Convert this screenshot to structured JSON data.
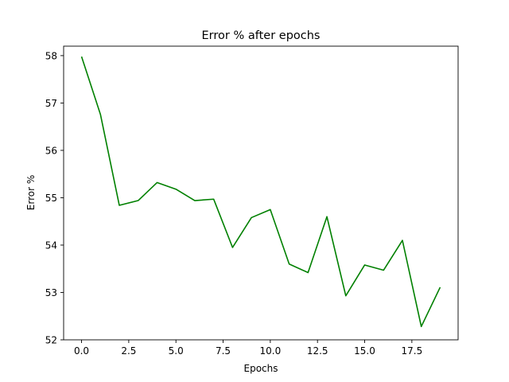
{
  "chart_data": {
    "type": "line",
    "title": "Error % after epochs",
    "xlabel": "Epochs",
    "ylabel": "Error %",
    "xlim": [
      -0.95,
      19.95
    ],
    "ylim": [
      52.0,
      58.2
    ],
    "xticks": [
      0.0,
      2.5,
      5.0,
      7.5,
      10.0,
      12.5,
      15.0,
      17.5
    ],
    "xtick_labels": [
      "0.0",
      "2.5",
      "5.0",
      "7.5",
      "10.0",
      "12.5",
      "15.0",
      "17.5"
    ],
    "yticks": [
      52,
      53,
      54,
      55,
      56,
      57,
      58
    ],
    "ytick_labels": [
      "52",
      "53",
      "54",
      "55",
      "56",
      "57",
      "58"
    ],
    "grid": false,
    "series": [
      {
        "color": "#008000",
        "x": [
          0,
          1,
          2,
          3,
          4,
          5,
          6,
          7,
          8,
          9,
          10,
          11,
          12,
          13,
          14,
          15,
          16,
          17,
          18,
          19
        ],
        "values": [
          57.98,
          56.76,
          54.84,
          54.94,
          55.32,
          55.18,
          54.94,
          54.97,
          53.95,
          54.58,
          54.75,
          53.6,
          53.42,
          54.6,
          52.93,
          53.58,
          53.47,
          54.1,
          52.28,
          53.11
        ]
      }
    ]
  }
}
